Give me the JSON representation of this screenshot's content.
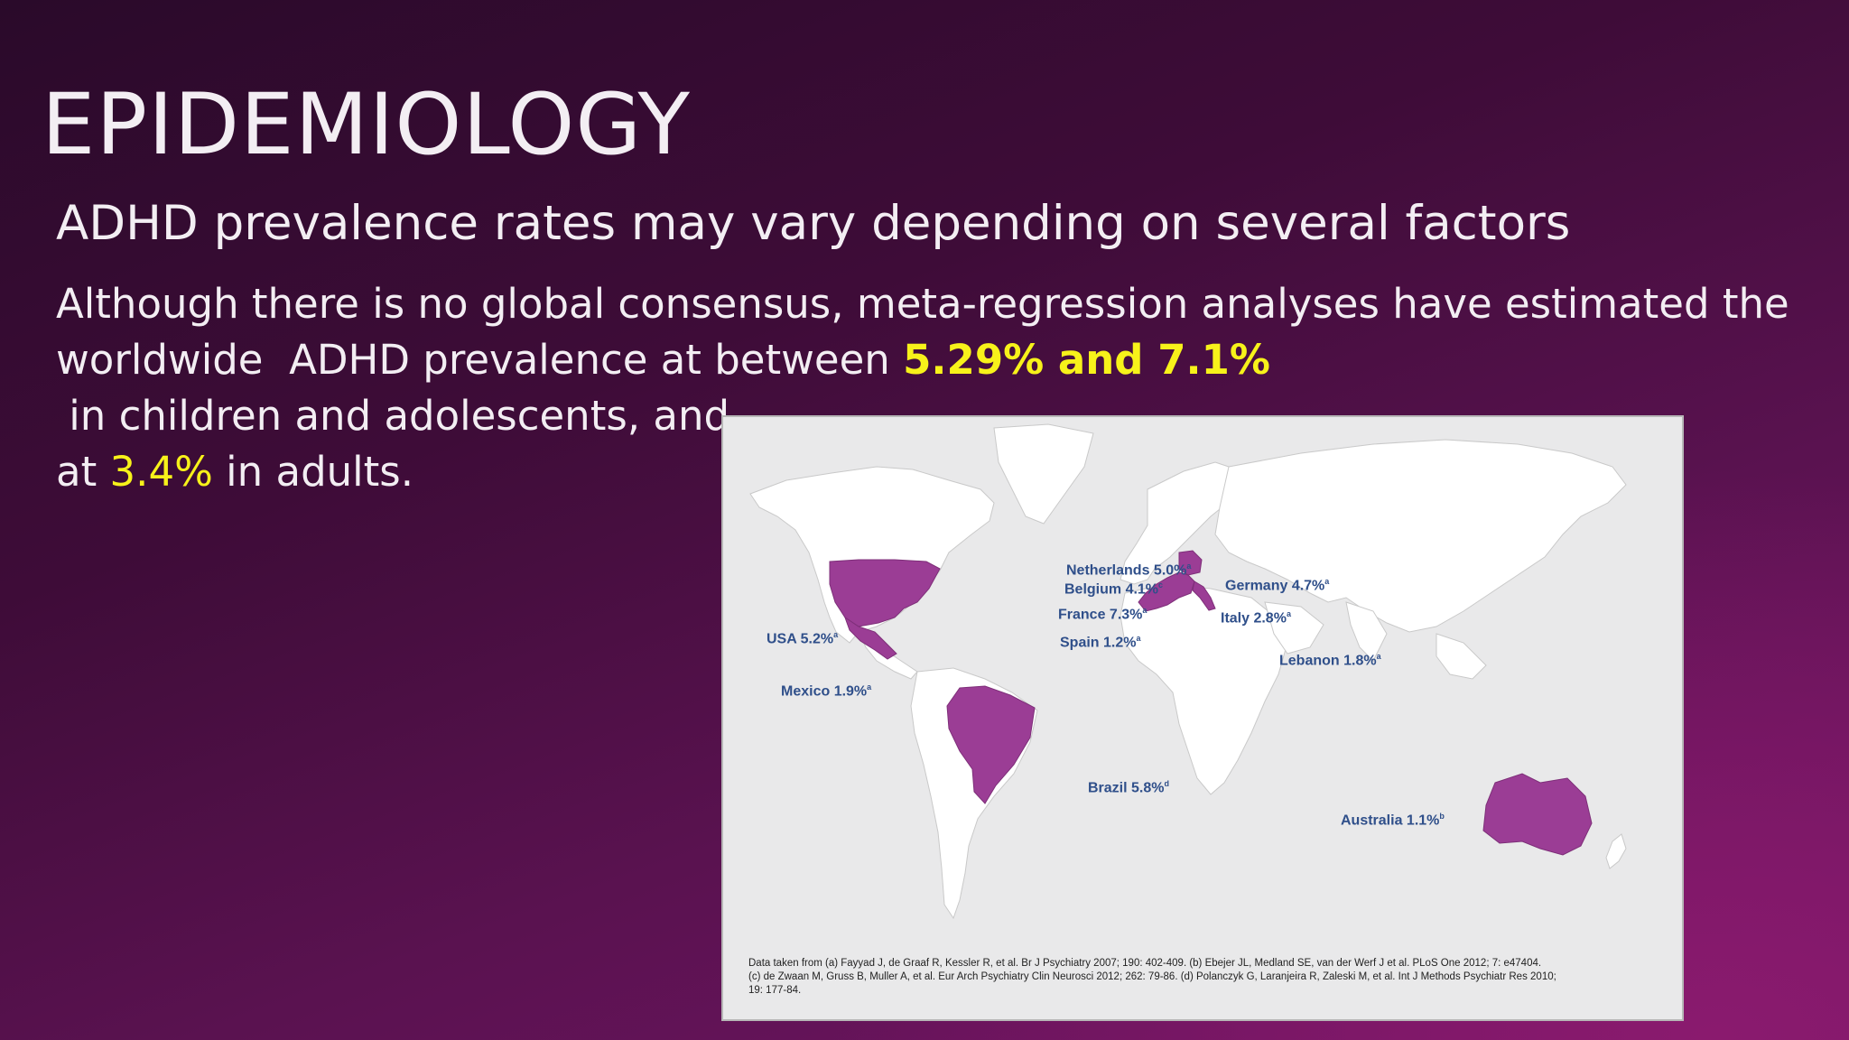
{
  "slide": {
    "title": "EPIDEMIOLOGY",
    "subtitle": "ADHD prevalence rates may vary depending on several factors",
    "body": {
      "line1": "Although there is no global consensus, meta-regression analyses have estimated the",
      "line2_pre": "worldwide  ADHD prevalence at between ",
      "line2_hl": "5.29% and 7.1%",
      "line2_post": " in children and adolescents, and",
      "line3_pre": "at ",
      "line3_hl": "3.4%",
      "line3_post": " in adults."
    },
    "accent_color": "#f7f21a"
  },
  "map": {
    "highlight_color": "#9b3d95",
    "labels": [
      {
        "id": "netherlands",
        "text": "Netherlands 5.0%",
        "sup": "a"
      },
      {
        "id": "belgium",
        "text": "Belgium 4.1%",
        "sup": "c"
      },
      {
        "id": "germany",
        "text": "Germany 4.7%",
        "sup": "a"
      },
      {
        "id": "france",
        "text": "France 7.3%",
        "sup": "a"
      },
      {
        "id": "italy",
        "text": "Italy 2.8%",
        "sup": "a"
      },
      {
        "id": "spain",
        "text": "Spain 1.2%",
        "sup": "a"
      },
      {
        "id": "usa",
        "text": "USA 5.2%",
        "sup": "a"
      },
      {
        "id": "lebanon",
        "text": "Lebanon 1.8%",
        "sup": "a"
      },
      {
        "id": "mexico",
        "text": "Mexico 1.9%",
        "sup": "a"
      },
      {
        "id": "brazil",
        "text": "Brazil 5.8%",
        "sup": "d"
      },
      {
        "id": "australia",
        "text": "Australia 1.1%",
        "sup": "b"
      }
    ],
    "source_lines": [
      "Data taken from (a) Fayyad J, de Graaf R, Kessler R, et al. Br J Psychiatry 2007; 190: 402-409. (b) Ebejer JL, Medland SE, van der Werf J et al. PLoS One 2012; 7: e47404.",
      "(c) de Zwaan M, Gruss B, Muller A, et al. Eur Arch Psychiatry Clin Neurosci 2012; 262: 79-86. (d) Polanczyk G, Laranjeira R, Zaleski M, et al. Int J Methods Psychiatr Res 2010;",
      "19: 177-84."
    ]
  }
}
